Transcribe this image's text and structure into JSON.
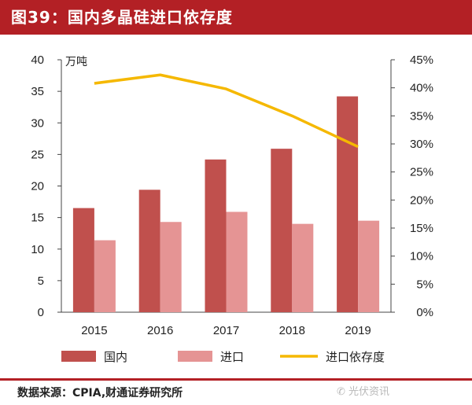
{
  "title": "图39：国内多晶硅进口依存度",
  "source": "数据来源：CPIA,财通证券研究所",
  "watermark": "✆ 光伏资讯",
  "colors": {
    "title_bg": "#b32025",
    "domestic": "#c0504d",
    "import": "#e59494",
    "ratio": "#f5b800",
    "axis": "#444444"
  },
  "chart_data": {
    "type": "bar",
    "title": "",
    "categories": [
      "2015",
      "2016",
      "2017",
      "2018",
      "2019"
    ],
    "y_left": {
      "unit_label": "万吨",
      "min": 0,
      "max": 40,
      "ticks": [
        0,
        5,
        10,
        15,
        20,
        25,
        30,
        35,
        40
      ]
    },
    "y_right": {
      "min": 0,
      "max": 45,
      "ticks": [
        "0%",
        "5%",
        "10%",
        "15%",
        "20%",
        "25%",
        "30%",
        "35%",
        "40%",
        "45%"
      ]
    },
    "series": [
      {
        "name": "国内",
        "type": "bar",
        "axis": "left",
        "values": [
          16.5,
          19.4,
          24.2,
          25.9,
          34.2
        ]
      },
      {
        "name": "进口",
        "type": "bar",
        "axis": "left",
        "values": [
          11.4,
          14.3,
          15.9,
          14.0,
          14.5
        ]
      },
      {
        "name": "进口依存度",
        "type": "line",
        "axis": "right",
        "values": [
          40.8,
          42.3,
          39.8,
          35.0,
          29.5
        ]
      }
    ],
    "grid": false,
    "legend": "bottom"
  }
}
